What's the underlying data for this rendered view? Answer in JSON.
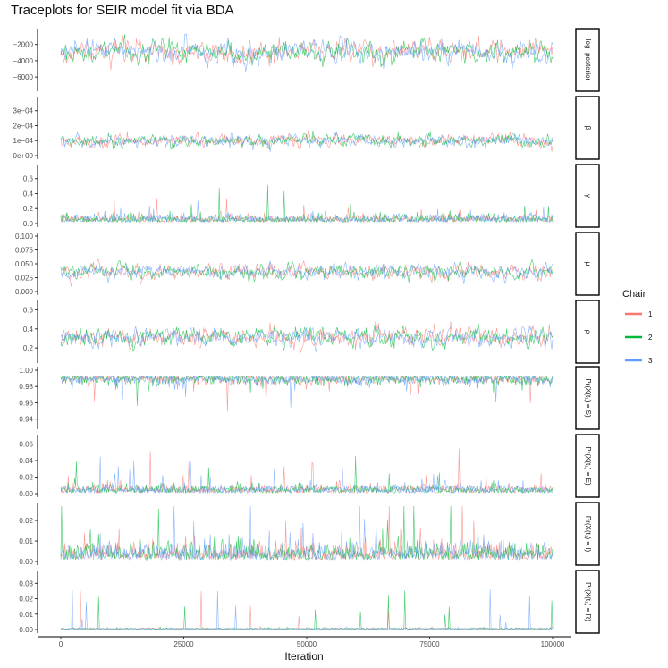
{
  "title": "Traceplots for SEIR model fit via BDA",
  "chart_data": {
    "type": "line",
    "title": "Traceplots for SEIR model fit via BDA",
    "xlabel": "Iteration",
    "ylabel": "",
    "xlim": [
      0,
      100000
    ],
    "x_ticks": [
      0,
      25000,
      50000,
      75000,
      100000
    ],
    "x_tick_labels": [
      "0",
      "25000",
      "50000",
      "75000",
      "100000"
    ],
    "legend": {
      "title": "Chain",
      "position": "right",
      "entries": [
        {
          "label": "1",
          "color": "#F8766D"
        },
        {
          "label": "2",
          "color": "#00BA38"
        },
        {
          "label": "3",
          "color": "#619CFF"
        }
      ]
    },
    "grid": false,
    "panels": [
      {
        "strip": "log−posterior",
        "ylim": [
          -7300,
          -500
        ],
        "y_ticks": [
          -2000,
          -4000,
          -6000
        ],
        "y_tick_labels": [
          "−2000",
          "−4000",
          "−6000"
        ],
        "center": -2900,
        "spread": 1300,
        "kind": "normal"
      },
      {
        "strip": "β",
        "ylim": [
          0,
          0.00037
        ],
        "y_ticks": [
          0,
          0.0001,
          0.0002,
          0.0003
        ],
        "y_tick_labels": [
          "0e+00",
          "1e−04",
          "2e−04",
          "3e−04"
        ],
        "center": 0.0001,
        "spread": 4e-05,
        "kind": "normal"
      },
      {
        "strip": "γ",
        "ylim": [
          0,
          0.74
        ],
        "y_ticks": [
          0,
          0.2,
          0.4,
          0.6
        ],
        "y_tick_labels": [
          "0.0",
          "0.2",
          "0.4",
          "0.6"
        ],
        "center": 0.05,
        "spread": 0.05,
        "kind": "skew"
      },
      {
        "strip": "μ",
        "ylim": [
          0,
          0.1
        ],
        "y_ticks": [
          0,
          0.025,
          0.05,
          0.075,
          0.1
        ],
        "y_tick_labels": [
          "0.000",
          "0.025",
          "0.050",
          "0.075",
          "0.100"
        ],
        "center": 0.035,
        "spread": 0.013,
        "kind": "normal"
      },
      {
        "strip": "ρ",
        "ylim": [
          0.08,
          0.66
        ],
        "y_ticks": [
          0.2,
          0.4,
          0.6
        ],
        "y_tick_labels": [
          "0.2",
          "0.4",
          "0.6"
        ],
        "center": 0.31,
        "spread": 0.09,
        "kind": "normal"
      },
      {
        "strip": "Pr(X(t₁) = S)",
        "ylim": [
          0.932,
          1.0
        ],
        "y_ticks": [
          0.94,
          0.96,
          0.98,
          1.0
        ],
        "y_tick_labels": [
          "0.94",
          "0.96",
          "0.98",
          "1.00"
        ],
        "center": 0.993,
        "spread": 0.005,
        "kind": "neg"
      },
      {
        "strip": "Pr(X(t₁) = E)",
        "ylim": [
          0,
          0.067
        ],
        "y_ticks": [
          0,
          0.02,
          0.04,
          0.06
        ],
        "y_tick_labels": [
          "0.00",
          "0.02",
          "0.04",
          "0.06"
        ],
        "center": 0.002,
        "spread": 0.005,
        "kind": "skew"
      },
      {
        "strip": "Pr(X(t₁) = I)",
        "ylim": [
          0,
          0.027
        ],
        "y_ticks": [
          0,
          0.01,
          0.02
        ],
        "y_tick_labels": [
          "0.00",
          "0.01",
          "0.02"
        ],
        "center": 0.002,
        "spread": 0.004,
        "kind": "skew"
      },
      {
        "strip": "Pr(X(t₁) = R)",
        "ylim": [
          0,
          0.036
        ],
        "y_ticks": [
          0,
          0.01,
          0.02,
          0.03
        ],
        "y_tick_labels": [
          "0.00",
          "0.01",
          "0.02",
          "0.03"
        ],
        "center": 0.0002,
        "spread": 0.0004,
        "kind": "spike"
      }
    ],
    "series": [
      {
        "name": "1",
        "color": "#F8766D"
      },
      {
        "name": "2",
        "color": "#00BA38"
      },
      {
        "name": "3",
        "color": "#619CFF"
      }
    ]
  }
}
